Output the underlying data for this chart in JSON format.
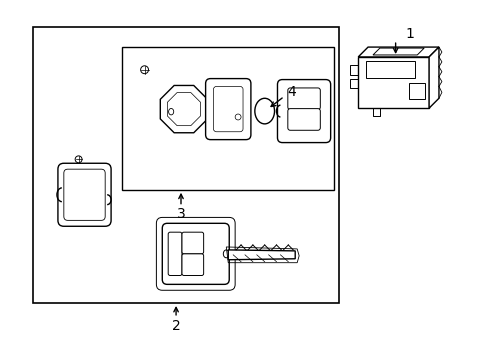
{
  "bg_color": "#ffffff",
  "line_color": "#000000",
  "fig_width": 4.89,
  "fig_height": 3.6,
  "dpi": 100,
  "label_1": "1",
  "label_2": "2",
  "label_3": "3",
  "label_4": "4"
}
